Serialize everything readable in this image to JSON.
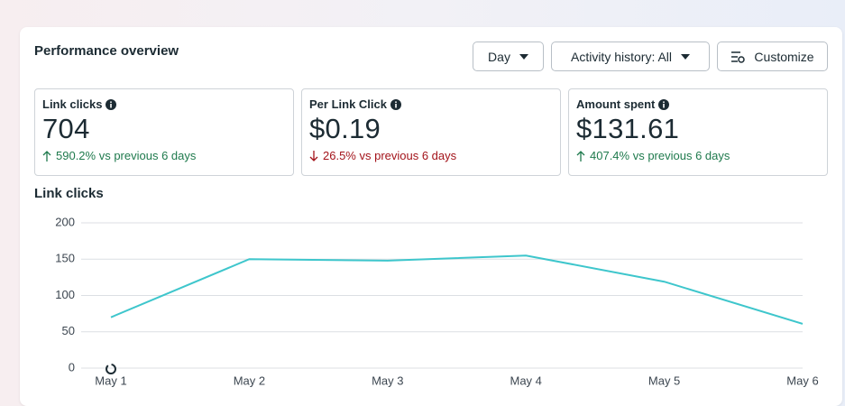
{
  "header": {
    "title": "Performance overview"
  },
  "buttons": {
    "day": "Day",
    "activity": "Activity history: All",
    "customize": "Customize"
  },
  "metrics": [
    {
      "label": "Link clicks",
      "value": "704",
      "change": "590.2% vs previous 6 days"
    },
    {
      "label": "Per Link Click",
      "value": "$0.19",
      "change": "26.5% vs previous 6 days"
    },
    {
      "label": "Amount spent",
      "value": "$131.61",
      "change": "407.4% vs previous 6 days"
    }
  ],
  "chart_data": {
    "type": "line",
    "title": "Link clicks",
    "categories": [
      "May 1",
      "May 2",
      "May 3",
      "May 4",
      "May 5",
      "May 6"
    ],
    "values": [
      70,
      150,
      148,
      155,
      119,
      61
    ],
    "color": "#3ec6cc",
    "ylim": [
      0,
      200
    ],
    "yticks": [
      0,
      50,
      100,
      150,
      200
    ],
    "grid": true
  }
}
